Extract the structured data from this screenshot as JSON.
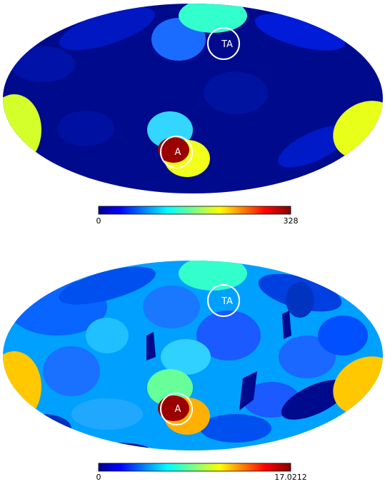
{
  "maps": [
    {
      "id": "top",
      "colorbar": {
        "min_label": "0",
        "max_label": "328"
      },
      "markers": [
        {
          "label": "TA"
        },
        {
          "label": "A"
        }
      ]
    },
    {
      "id": "bottom",
      "colorbar": {
        "min_label": "0",
        "max_label": "17.0212"
      },
      "markers": [
        {
          "label": "TA"
        },
        {
          "label": "A"
        }
      ]
    }
  ],
  "colormap": "jet",
  "colors": {
    "deep_blue": "#000a8c",
    "blue": "#0033ff",
    "cyan": "#00c8ff",
    "aqua": "#33ffcc",
    "yellow": "#e8ff1a",
    "orange": "#ffc800",
    "dark_red": "#9b0000"
  }
}
